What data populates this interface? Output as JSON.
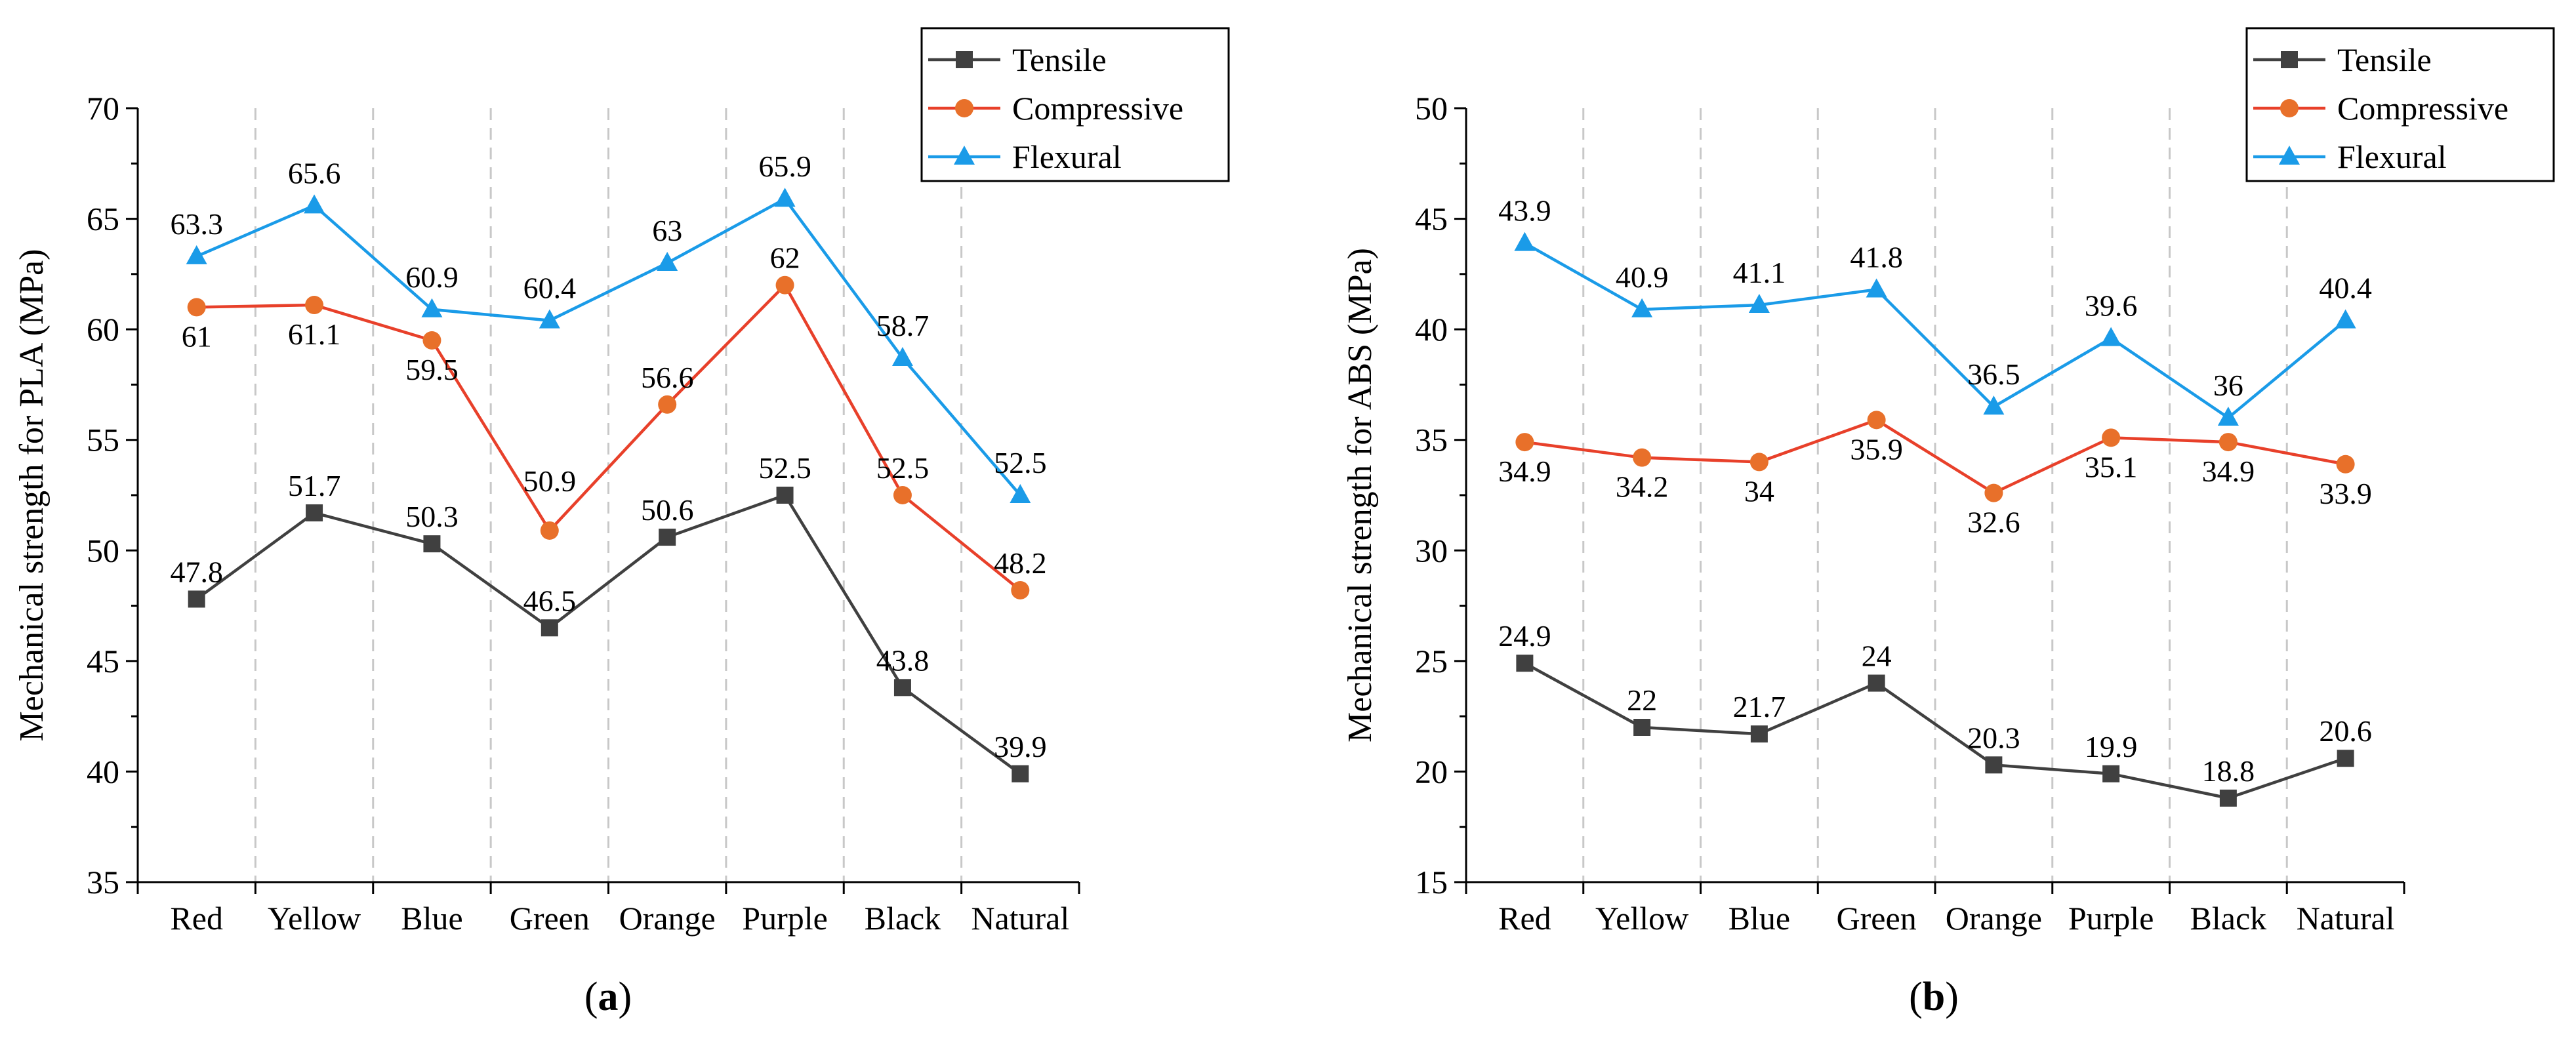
{
  "chart_data": [
    {
      "type": "line",
      "panel_label": "a",
      "categories": [
        "Red",
        "Yellow",
        "Blue",
        "Green",
        "Orange",
        "Purple",
        "Black",
        "Natural"
      ],
      "ylabel": "Mechanical strength for PLA (MPa)",
      "xlabel": "",
      "ylim": [
        35,
        70
      ],
      "yticks": [
        35,
        40,
        45,
        50,
        55,
        60,
        65,
        70
      ],
      "legend_position": "top-right",
      "series": [
        {
          "name": "Tensile",
          "color": "#404040",
          "marker": "square",
          "values": [
            47.8,
            51.7,
            50.3,
            46.5,
            50.6,
            52.5,
            43.8,
            39.9
          ],
          "labels": [
            "47.8",
            "51.7",
            "50.3",
            "46.5",
            "50.6",
            "52.5",
            "43.8",
            "39.9"
          ]
        },
        {
          "name": "Compressive",
          "color": "#e8702a",
          "line_color": "#e8402a",
          "marker": "circle",
          "values": [
            61,
            61.1,
            59.5,
            50.9,
            56.6,
            62,
            52.5,
            48.2
          ],
          "labels": [
            "61",
            "61.1",
            "59.5",
            "50.9",
            "56.6",
            "62",
            "52.5",
            "48.2"
          ]
        },
        {
          "name": "Flexural",
          "color": "#1a9be8",
          "marker": "triangle",
          "values": [
            63.3,
            65.6,
            60.9,
            60.4,
            63,
            65.9,
            58.7,
            52.5
          ],
          "labels": [
            "63.3",
            "65.6",
            "60.9",
            "60.4",
            "63",
            "65.9",
            "58.7",
            "52.5"
          ]
        }
      ]
    },
    {
      "type": "line",
      "panel_label": "b",
      "categories": [
        "Red",
        "Yellow",
        "Blue",
        "Green",
        "Orange",
        "Purple",
        "Black",
        "Natural"
      ],
      "ylabel": "Mechanical strength for ABS (MPa)",
      "xlabel": "",
      "ylim": [
        15,
        50
      ],
      "yticks": [
        15,
        20,
        25,
        30,
        35,
        40,
        45,
        50
      ],
      "legend_position": "top-right",
      "series": [
        {
          "name": "Tensile",
          "color": "#404040",
          "marker": "square",
          "values": [
            24.9,
            22,
            21.7,
            24,
            20.3,
            19.9,
            18.8,
            20.6
          ],
          "labels": [
            "24.9",
            "22",
            "21.7",
            "24",
            "20.3",
            "19.9",
            "18.8",
            "20.6"
          ]
        },
        {
          "name": "Compressive",
          "color": "#e8702a",
          "line_color": "#e8402a",
          "marker": "circle",
          "values": [
            34.9,
            34.2,
            34,
            35.9,
            32.6,
            35.1,
            34.9,
            33.9
          ],
          "labels": [
            "34.9",
            "34.2",
            "34",
            "35.9",
            "32.6",
            "35.1",
            "34.9",
            "33.9"
          ]
        },
        {
          "name": "Flexural",
          "color": "#1a9be8",
          "marker": "triangle",
          "values": [
            43.9,
            40.9,
            41.1,
            41.8,
            36.5,
            39.6,
            36,
            40.4
          ],
          "labels": [
            "43.9",
            "40.9",
            "41.1",
            "41.8",
            "36.5",
            "39.6",
            "36",
            "40.4"
          ]
        }
      ]
    }
  ]
}
